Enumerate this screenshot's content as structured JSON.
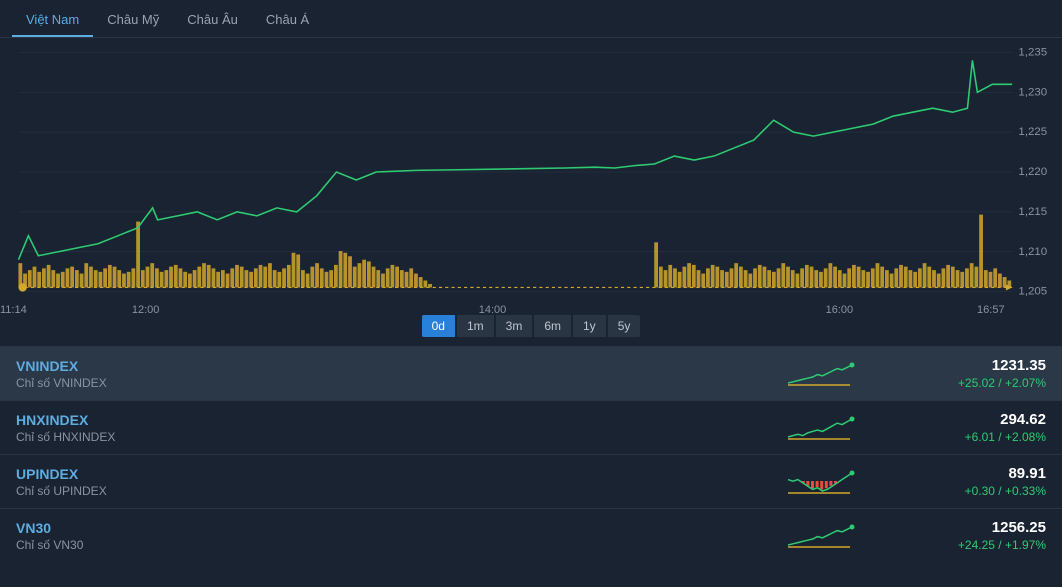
{
  "tabs": {
    "items": [
      "Việt Nam",
      "Châu Mỹ",
      "Châu Âu",
      "Châu Á"
    ],
    "active_index": 0
  },
  "chart": {
    "type": "line_with_volume",
    "background_color": "#1a2332",
    "grid_color": "#2a3544",
    "line_color": "#2ecc71",
    "volume_color": "#d4a82a",
    "y_axis": {
      "min": 1205,
      "max": 1235,
      "ticks": [
        1205,
        1210,
        1215,
        1220,
        1225,
        1230,
        1235
      ],
      "label_color": "#8a93a2",
      "label_fontsize": 11
    },
    "x_axis": {
      "labels": [
        {
          "t": 0,
          "v": "11:14"
        },
        {
          "t": 0.135,
          "v": "12:00"
        },
        {
          "t": 0.49,
          "v": "14:00"
        },
        {
          "t": 0.845,
          "v": "16:00"
        },
        {
          "t": 1.0,
          "v": "16:57"
        }
      ],
      "label_color": "#8a93a2",
      "label_fontsize": 11
    },
    "line_data": [
      {
        "t": 0,
        "v": 1209
      },
      {
        "t": 0.01,
        "v": 1212
      },
      {
        "t": 0.02,
        "v": 1209.5
      },
      {
        "t": 0.04,
        "v": 1210
      },
      {
        "t": 0.06,
        "v": 1210.5
      },
      {
        "t": 0.08,
        "v": 1211
      },
      {
        "t": 0.1,
        "v": 1212
      },
      {
        "t": 0.12,
        "v": 1213
      },
      {
        "t": 0.135,
        "v": 1215.5
      },
      {
        "t": 0.14,
        "v": 1214
      },
      {
        "t": 0.16,
        "v": 1214.5
      },
      {
        "t": 0.18,
        "v": 1215
      },
      {
        "t": 0.2,
        "v": 1214
      },
      {
        "t": 0.22,
        "v": 1215
      },
      {
        "t": 0.24,
        "v": 1214.5
      },
      {
        "t": 0.26,
        "v": 1215.5
      },
      {
        "t": 0.28,
        "v": 1215
      },
      {
        "t": 0.3,
        "v": 1217
      },
      {
        "t": 0.32,
        "v": 1220
      },
      {
        "t": 0.34,
        "v": 1219
      },
      {
        "t": 0.36,
        "v": 1220
      },
      {
        "t": 0.4,
        "v": 1220.2
      },
      {
        "t": 0.45,
        "v": 1220.3
      },
      {
        "t": 0.5,
        "v": 1220.4
      },
      {
        "t": 0.55,
        "v": 1220.5
      },
      {
        "t": 0.58,
        "v": 1220.6
      },
      {
        "t": 0.6,
        "v": 1220.5
      },
      {
        "t": 0.62,
        "v": 1220.8
      },
      {
        "t": 0.64,
        "v": 1221
      },
      {
        "t": 0.66,
        "v": 1222
      },
      {
        "t": 0.68,
        "v": 1221.5
      },
      {
        "t": 0.7,
        "v": 1222
      },
      {
        "t": 0.72,
        "v": 1223
      },
      {
        "t": 0.74,
        "v": 1224
      },
      {
        "t": 0.76,
        "v": 1226.5
      },
      {
        "t": 0.78,
        "v": 1225
      },
      {
        "t": 0.8,
        "v": 1224.5
      },
      {
        "t": 0.82,
        "v": 1225
      },
      {
        "t": 0.84,
        "v": 1225.5
      },
      {
        "t": 0.86,
        "v": 1226
      },
      {
        "t": 0.88,
        "v": 1227
      },
      {
        "t": 0.9,
        "v": 1227.5
      },
      {
        "t": 0.92,
        "v": 1228
      },
      {
        "t": 0.94,
        "v": 1227.5
      },
      {
        "t": 0.955,
        "v": 1228
      },
      {
        "t": 0.96,
        "v": 1234
      },
      {
        "t": 0.965,
        "v": 1230
      },
      {
        "t": 0.98,
        "v": 1231
      },
      {
        "t": 1.0,
        "v": 1231
      }
    ],
    "volume_data": [
      14,
      8,
      10,
      12,
      9,
      11,
      13,
      10,
      8,
      9,
      11,
      12,
      10,
      8,
      14,
      12,
      10,
      9,
      11,
      13,
      12,
      10,
      8,
      9,
      11,
      38,
      10,
      12,
      14,
      11,
      9,
      10,
      12,
      13,
      11,
      9,
      8,
      10,
      12,
      14,
      13,
      11,
      9,
      10,
      8,
      11,
      13,
      12,
      10,
      9,
      11,
      13,
      12,
      14,
      10,
      9,
      11,
      13,
      20,
      19,
      10,
      8,
      12,
      14,
      11,
      9,
      10,
      13,
      21,
      20,
      18,
      12,
      14,
      16,
      15,
      12,
      10,
      8,
      11,
      13,
      12,
      10,
      9,
      11,
      8,
      6,
      4,
      2,
      0,
      0,
      0,
      0,
      0,
      0,
      0,
      0,
      0,
      0,
      0,
      0,
      0,
      0,
      0,
      0,
      0,
      0,
      0,
      0,
      0,
      0,
      0,
      0,
      0,
      0,
      0,
      0,
      0,
      0,
      0,
      0,
      0,
      0,
      0,
      0,
      0,
      0,
      0,
      0,
      0,
      0,
      0,
      0,
      0,
      0,
      0,
      26,
      12,
      10,
      13,
      11,
      9,
      12,
      14,
      13,
      10,
      8,
      11,
      13,
      12,
      10,
      9,
      11,
      14,
      12,
      10,
      8,
      11,
      13,
      12,
      10,
      9,
      11,
      14,
      12,
      10,
      8,
      11,
      13,
      12,
      10,
      9,
      11,
      14,
      12,
      10,
      8,
      11,
      13,
      12,
      10,
      9,
      11,
      14,
      12,
      10,
      8,
      11,
      13,
      12,
      10,
      9,
      11,
      14,
      12,
      10,
      8,
      11,
      13,
      12,
      10,
      9,
      11,
      14,
      12,
      42,
      10,
      9,
      11,
      8,
      6,
      4
    ],
    "volume_max": 42,
    "baseline_marker_color": "#d4a82a"
  },
  "range_buttons": {
    "items": [
      "0d",
      "1m",
      "3m",
      "6m",
      "1y",
      "5y"
    ],
    "active_index": 0
  },
  "indices": [
    {
      "symbol": "VNINDEX",
      "desc": "Chỉ số VNINDEX",
      "value": "1231.35",
      "change": "+25.02 / +2.07%",
      "change_positive": true,
      "highlight": true,
      "spark": [
        8,
        9,
        10,
        11,
        12,
        13,
        15,
        14,
        16,
        18,
        20,
        19,
        21,
        23
      ],
      "spark_color": "#2ecc71"
    },
    {
      "symbol": "HNXINDEX",
      "desc": "Chỉ số HNXINDEX",
      "value": "294.62",
      "change": "+6.01 / +2.08%",
      "change_positive": true,
      "highlight": false,
      "spark": [
        9,
        10,
        11,
        10,
        12,
        13,
        14,
        13,
        15,
        17,
        19,
        18,
        20,
        22
      ],
      "spark_color": "#2ecc71"
    },
    {
      "symbol": "UPINDEX",
      "desc": "Chỉ số UPINDEX",
      "value": "89.91",
      "change": "+0.30 / +0.33%",
      "change_positive": true,
      "highlight": false,
      "spark": [
        15,
        14,
        15,
        13,
        11,
        9,
        10,
        8,
        9,
        11,
        13,
        15,
        17,
        19
      ],
      "spark_color": "#2ecc71",
      "spark_neg": [
        0,
        0,
        0,
        2,
        4,
        6,
        5,
        7,
        6,
        4,
        2,
        0,
        0,
        0
      ]
    },
    {
      "symbol": "VN30",
      "desc": "Chỉ số VN30",
      "value": "1256.25",
      "change": "+24.25 / +1.97%",
      "change_positive": true,
      "highlight": false,
      "spark": [
        8,
        9,
        10,
        11,
        12,
        13,
        15,
        14,
        16,
        18,
        20,
        19,
        21,
        23
      ],
      "spark_color": "#2ecc71"
    }
  ],
  "colors": {
    "positive": "#2ecc71",
    "negative": "#e74c3c",
    "accent": "#5dade2"
  }
}
